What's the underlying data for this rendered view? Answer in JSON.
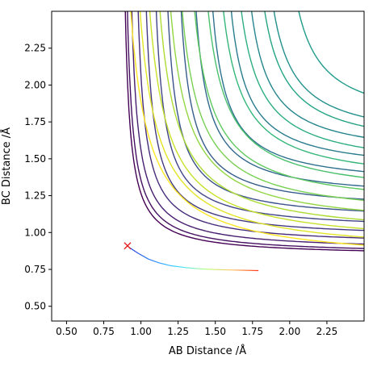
{
  "chart_data": {
    "type": "contour",
    "xlabel": "AB Distance /Å",
    "ylabel": "BC Distance /Å",
    "xlim": [
      0.4,
      2.5
    ],
    "ylim": [
      0.4,
      2.5
    ],
    "xticks": [
      "0.50",
      "0.75",
      "1.00",
      "1.25",
      "1.50",
      "1.75",
      "2.00",
      "2.25"
    ],
    "yticks": [
      "0.50",
      "0.75",
      "1.00",
      "1.25",
      "1.50",
      "1.75",
      "2.00",
      "2.25"
    ],
    "xtick_values": [
      0.5,
      0.75,
      1.0,
      1.25,
      1.5,
      1.75,
      2.0,
      2.25
    ],
    "ytick_values": [
      0.5,
      0.75,
      1.0,
      1.25,
      1.5,
      1.75,
      2.0,
      2.25
    ],
    "colormap": [
      "#440154",
      "#482878",
      "#3e4989",
      "#31688e",
      "#26828e",
      "#1f9e89",
      "#35b779",
      "#6ece58",
      "#b5de2b",
      "#fde725"
    ],
    "contours": {
      "count": 25,
      "valley_asymptote_x": 0.74,
      "valley_asymptote_y": 0.74,
      "lowest_level_curve_offsets": [
        0.1,
        0.15
      ]
    },
    "start_marker": {
      "x": 0.91,
      "y": 0.91,
      "symbol": "x",
      "color": "#e41a1c"
    },
    "trajectory": {
      "x": [
        0.92,
        0.98,
        1.05,
        1.12,
        1.2,
        1.3,
        1.4,
        1.5,
        1.6,
        1.7,
        1.79
      ],
      "y": [
        0.9,
        0.86,
        0.82,
        0.795,
        0.775,
        0.762,
        0.754,
        0.749,
        0.746,
        0.744,
        0.742
      ],
      "color_gradient": [
        "#1f3bd6",
        "#2f8fff",
        "#45e0ff",
        "#b9ff7a",
        "#ffc060",
        "#ff3a1a"
      ]
    }
  }
}
